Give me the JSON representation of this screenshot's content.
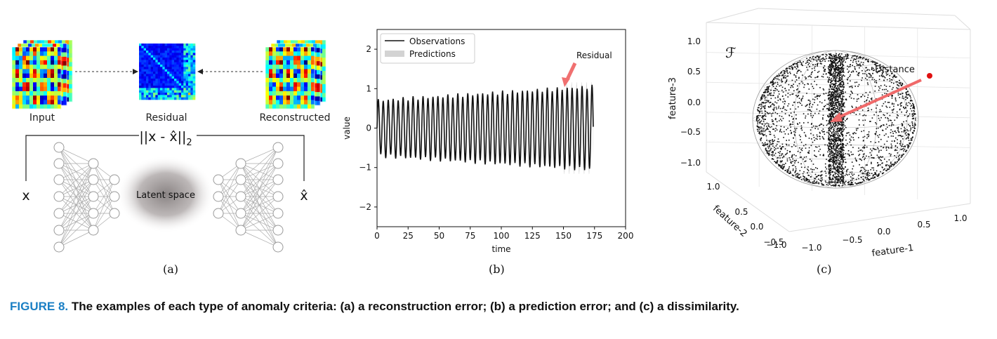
{
  "panel_a": {
    "input_label": "Input",
    "residual_label": "Residual",
    "reconstructed_label": "Reconstructed",
    "norm_label": "||x - x̂||",
    "norm_sub": "2",
    "x_label": "x",
    "xhat_label": "x̂",
    "latent_label": "Latent space",
    "sublabel": "(a)"
  },
  "panel_b": {
    "sublabel": "(b)",
    "chart_data": {
      "type": "line",
      "xlabel": "time",
      "ylabel": "value",
      "xlim": [
        0,
        200
      ],
      "ylim": [
        -2.5,
        2.5
      ],
      "xticks": [
        0,
        25,
        50,
        75,
        100,
        125,
        150,
        175,
        200
      ],
      "yticks": [
        -2,
        -1,
        0,
        1,
        2
      ],
      "legend": "top-left",
      "legend_entries": [
        "Observations",
        "Predictions"
      ],
      "annotation": "Residual",
      "observations_range": [
        0,
        174
      ],
      "predictions_range": [
        149,
        174
      ],
      "period": 4,
      "observation_amplitude_start": 0.7,
      "observation_amplitude_end": 1.05,
      "prediction_amplitude": 1.0
    }
  },
  "panel_c": {
    "sublabel": "(c)",
    "symbol": "ℱ",
    "distance_label": "Distance",
    "chart_data": {
      "type": "scatter",
      "xlabel": "feature-1",
      "ylabel": "feature-2",
      "zlabel": "feature-3",
      "xticks": [
        "−1.0",
        "−0.5",
        "0.0",
        "0.5",
        "1.0"
      ],
      "yticks": [
        "1.0",
        "0.5",
        "0.0",
        "−0.5",
        "−1.0"
      ],
      "zticks": [
        "1.0",
        "0.5",
        "0.0",
        "−0.5",
        "−1.0"
      ]
    }
  },
  "caption": {
    "figure_label": "FIGURE 8.",
    "text": "The examples of each type of anomaly criteria: (a) a reconstruction error; (b) a prediction error; and (c) a dissimilarity."
  }
}
